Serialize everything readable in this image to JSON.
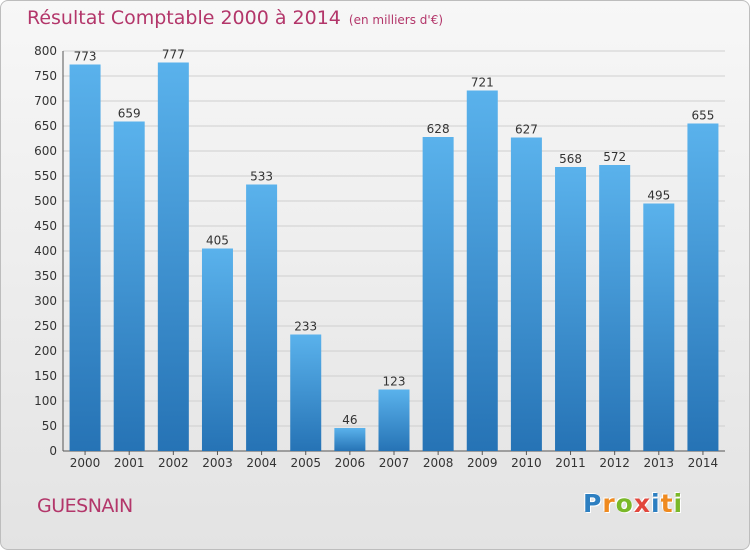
{
  "chart_data": {
    "type": "bar",
    "title": "Résultat Comptable 2000 à 2014",
    "unit_note": "(en milliers d'€)",
    "categories": [
      "2000",
      "2001",
      "2002",
      "2003",
      "2004",
      "2005",
      "2006",
      "2007",
      "2008",
      "2009",
      "2010",
      "2011",
      "2012",
      "2013",
      "2014"
    ],
    "values": [
      773,
      659,
      777,
      405,
      533,
      233,
      46,
      123,
      628,
      721,
      627,
      568,
      572,
      495,
      655
    ],
    "ylim": [
      0,
      800
    ],
    "yticks": [
      0,
      50,
      100,
      150,
      200,
      250,
      300,
      350,
      400,
      450,
      500,
      550,
      600,
      650,
      700,
      750,
      800
    ],
    "grid": true,
    "bar_colors": [
      "#5ab2ec",
      "#2673b5"
    ]
  },
  "footer": {
    "commune": "GUESNAIN",
    "logo_letters": [
      {
        "char": "P",
        "color": "#2d7fc1"
      },
      {
        "char": "r",
        "color": "#ef8a1f"
      },
      {
        "char": "o",
        "color": "#7ab829"
      },
      {
        "char": "x",
        "color": "#e2463c"
      },
      {
        "char": "i",
        "color": "#2d7fc1"
      },
      {
        "char": "t",
        "color": "#ef8a1f"
      },
      {
        "char": "i",
        "color": "#7ab829"
      }
    ]
  }
}
